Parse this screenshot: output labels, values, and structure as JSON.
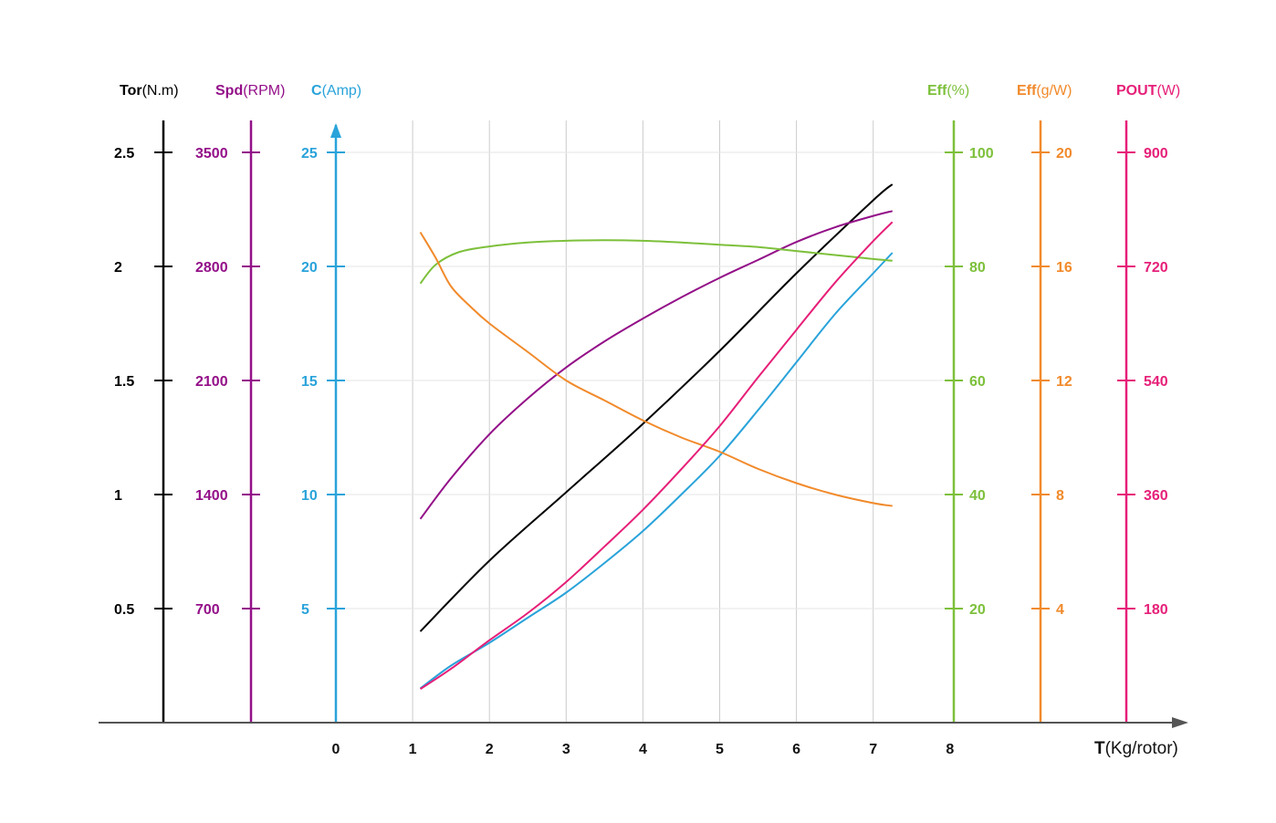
{
  "chart_data": {
    "type": "line",
    "x_axis": {
      "title_bold": "T",
      "title_unit": "(Kg/rotor)",
      "ticks": [
        0,
        1,
        2,
        3,
        4,
        5,
        6,
        7,
        8
      ],
      "range": [
        0,
        8
      ]
    },
    "y_axes": [
      {
        "id": "tor",
        "title_bold": "Tor",
        "title_unit": "(N.m)",
        "color": "#000000",
        "side": "left",
        "ticks": [
          0.5,
          1,
          1.5,
          2,
          2.5
        ],
        "tick_labels": [
          "0.5",
          "1",
          "1.5",
          "2",
          "2.5"
        ],
        "range": [
          0,
          2.5
        ]
      },
      {
        "id": "spd",
        "title_bold": "Spd",
        "title_unit": "(RPM)",
        "color": "#930f88",
        "side": "left",
        "ticks": [
          700,
          1400,
          2100,
          2800,
          3500
        ],
        "tick_labels": [
          "700",
          "1400",
          "2100",
          "2800",
          "3500"
        ],
        "range": [
          0,
          3500
        ]
      },
      {
        "id": "c",
        "title_bold": "C",
        "title_unit": "(Amp)",
        "color": "#29a3da",
        "side": "left",
        "ticks": [
          5,
          10,
          15,
          20,
          25
        ],
        "tick_labels": [
          "5",
          "10",
          "15",
          "20",
          "25"
        ],
        "range": [
          0,
          25
        ]
      },
      {
        "id": "effp",
        "title_bold": "Eff",
        "title_unit": "(%)",
        "color": "#7dc03b",
        "side": "right",
        "ticks": [
          20,
          40,
          60,
          80,
          100
        ],
        "tick_labels": [
          "20",
          "40",
          "60",
          "80",
          "100"
        ],
        "range": [
          0,
          100
        ]
      },
      {
        "id": "effgw",
        "title_bold": "Eff",
        "title_unit": "(g/W)",
        "color": "#f18a2b",
        "side": "right",
        "ticks": [
          4,
          8,
          12,
          16,
          20
        ],
        "tick_labels": [
          "4",
          "8",
          "12",
          "16",
          "20"
        ],
        "range": [
          0,
          20
        ]
      },
      {
        "id": "pout",
        "title_bold": "POUT",
        "title_unit": "(W)",
        "color": "#e61f78",
        "side": "right",
        "ticks": [
          180,
          360,
          540,
          720,
          900
        ],
        "tick_labels": [
          "180",
          "360",
          "540",
          "720",
          "900"
        ],
        "range": [
          0,
          900
        ]
      }
    ],
    "grid": true,
    "series": [
      {
        "axis": "tor",
        "color": "#000000",
        "points": [
          [
            1.1,
            0.4
          ],
          [
            2,
            0.71
          ],
          [
            3,
            1.01
          ],
          [
            4,
            1.31
          ],
          [
            5,
            1.63
          ],
          [
            6,
            1.97
          ],
          [
            7,
            2.29
          ],
          [
            7.25,
            2.36
          ]
        ]
      },
      {
        "axis": "spd",
        "color": "#930f88",
        "points": [
          [
            1.1,
            1250
          ],
          [
            1.5,
            1500
          ],
          [
            2,
            1770
          ],
          [
            2.5,
            1990
          ],
          [
            3,
            2180
          ],
          [
            3.5,
            2340
          ],
          [
            4,
            2480
          ],
          [
            4.5,
            2610
          ],
          [
            5,
            2730
          ],
          [
            5.5,
            2840
          ],
          [
            6,
            2950
          ],
          [
            6.5,
            3040
          ],
          [
            7,
            3110
          ],
          [
            7.25,
            3140
          ]
        ]
      },
      {
        "axis": "c",
        "color": "#29a3da",
        "points": [
          [
            1.1,
            1.5
          ],
          [
            1.5,
            2.5
          ],
          [
            2,
            3.5
          ],
          [
            2.5,
            4.6
          ],
          [
            3,
            5.7
          ],
          [
            3.5,
            7.0
          ],
          [
            4,
            8.4
          ],
          [
            4.5,
            10.0
          ],
          [
            5,
            11.7
          ],
          [
            5.5,
            13.7
          ],
          [
            6,
            15.8
          ],
          [
            6.5,
            17.9
          ],
          [
            7,
            19.7
          ],
          [
            7.25,
            20.6
          ]
        ]
      },
      {
        "axis": "effp",
        "color": "#7dc03b",
        "points": [
          [
            1.1,
            77
          ],
          [
            1.3,
            80.3
          ],
          [
            1.6,
            82.5
          ],
          [
            2,
            83.5
          ],
          [
            2.5,
            84.2
          ],
          [
            3,
            84.5
          ],
          [
            3.5,
            84.6
          ],
          [
            4,
            84.5
          ],
          [
            4.5,
            84.2
          ],
          [
            5,
            83.8
          ],
          [
            5.5,
            83.4
          ],
          [
            6,
            82.7
          ],
          [
            6.5,
            82.0
          ],
          [
            7,
            81.3
          ],
          [
            7.25,
            81.0
          ]
        ]
      },
      {
        "axis": "effgw",
        "color": "#f18a2b",
        "points": [
          [
            1.1,
            17.2
          ],
          [
            1.3,
            16.3
          ],
          [
            1.5,
            15.3
          ],
          [
            1.75,
            14.6
          ],
          [
            2,
            14.0
          ],
          [
            2.5,
            13.0
          ],
          [
            3,
            12.0
          ],
          [
            3.5,
            11.3
          ],
          [
            4,
            10.6
          ],
          [
            4.5,
            10.0
          ],
          [
            5,
            9.5
          ],
          [
            5.5,
            8.9
          ],
          [
            6,
            8.4
          ],
          [
            6.5,
            8.0
          ],
          [
            7,
            7.7
          ],
          [
            7.25,
            7.6
          ]
        ]
      },
      {
        "axis": "pout",
        "color": "#e61f78",
        "points": [
          [
            1.1,
            53
          ],
          [
            1.5,
            85
          ],
          [
            2,
            130
          ],
          [
            2.5,
            173
          ],
          [
            3,
            222
          ],
          [
            3.5,
            278
          ],
          [
            4,
            336
          ],
          [
            4.5,
            400
          ],
          [
            5,
            468
          ],
          [
            5.5,
            545
          ],
          [
            6,
            620
          ],
          [
            6.5,
            694
          ],
          [
            7,
            760
          ],
          [
            7.25,
            790
          ]
        ]
      }
    ]
  }
}
